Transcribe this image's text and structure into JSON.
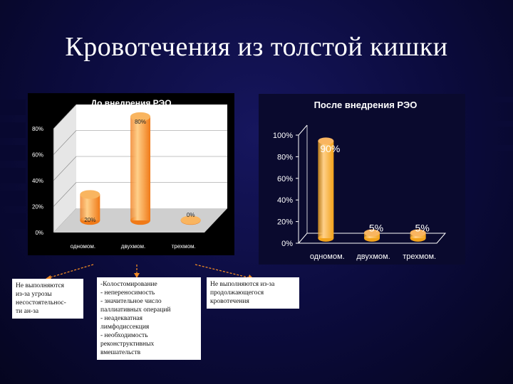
{
  "slide": {
    "title": "Кровотечения из толстой кишки"
  },
  "chart_data": [
    {
      "type": "bar",
      "title": "До внедрения РЭО",
      "categories": [
        "одномом.",
        "двухмом.",
        "трехмом."
      ],
      "values": [
        20,
        80,
        0
      ],
      "data_labels": [
        "20%",
        "80%",
        "0%"
      ],
      "y_ticks": [
        "0%",
        "20%",
        "40%",
        "60%",
        "80%"
      ],
      "ylim": [
        0,
        80
      ],
      "grid": true,
      "legend": "none",
      "bar_color": "#f07a18"
    },
    {
      "type": "bar",
      "title": "После внедрения РЭО",
      "categories": [
        "одномом.",
        "двухмом.",
        "трехмом."
      ],
      "values": [
        90,
        5,
        5
      ],
      "data_labels": [
        "90%",
        "5%",
        "5%"
      ],
      "y_ticks": [
        "0%",
        "20%",
        "40%",
        "60%",
        "80%",
        "100%"
      ],
      "ylim": [
        0,
        100
      ],
      "grid": false,
      "legend": "none",
      "bar_color": "#f2a21a"
    }
  ],
  "notes": {
    "left": [
      "Не выполняются",
      "из-за угрозы",
      "несостоятельнос-",
      "ти ан-за"
    ],
    "middle": [
      "-Колостомирование",
      "- непереносимость",
      "- значительное число",
      "паллиативных операций",
      "- неадекватная",
      "лимфодиссекция",
      "- необходимость",
      "реконструктивных",
      "вмешательств"
    ],
    "right": [
      "Не выполняются из-за",
      "продолжающегося",
      "кровотечения"
    ]
  },
  "colors": {
    "background": "#0b0b3c",
    "connector": "#f08a24"
  }
}
